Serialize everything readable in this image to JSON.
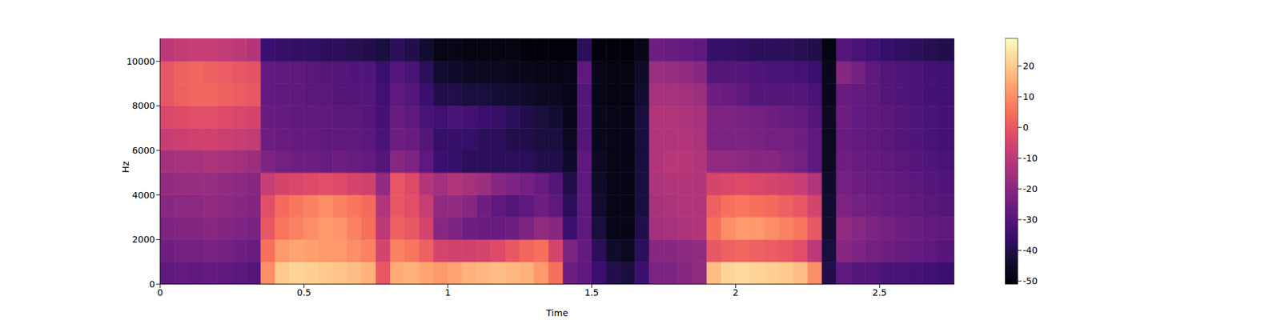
{
  "chart_data": {
    "type": "heatmap",
    "x_label": "Time",
    "y_label": "Hz",
    "xlim": [
      0,
      2.76
    ],
    "ylim": [
      0,
      11025
    ],
    "xticks": [
      0,
      0.5,
      1,
      1.5,
      2,
      2.5
    ],
    "yticks": [
      0,
      2000,
      4000,
      6000,
      8000,
      10000
    ],
    "x_edges": [
      0,
      0.05,
      0.1,
      0.15,
      0.2,
      0.25,
      0.3,
      0.35,
      0.4,
      0.45,
      0.5,
      0.55,
      0.6,
      0.65,
      0.7,
      0.75,
      0.8,
      0.85,
      0.9,
      0.95,
      1,
      1.05,
      1.1,
      1.15,
      1.2,
      1.25,
      1.3,
      1.35,
      1.4,
      1.45,
      1.5,
      1.55,
      1.6,
      1.65,
      1.7,
      1.75,
      1.8,
      1.85,
      1.9,
      1.95,
      2,
      2.05,
      2.1,
      2.15,
      2.2,
      2.25,
      2.3,
      2.35,
      2.4,
      2.45,
      2.5,
      2.55,
      2.6,
      2.65,
      2.7,
      2.76
    ],
    "y_edges": [
      0,
      1000,
      2000,
      3000,
      4000,
      5000,
      6000,
      7000,
      8000,
      9000,
      10000,
      11025
    ],
    "cells": [
      [
        -28,
        -27,
        -28,
        -27,
        -28,
        -29,
        -30,
        10,
        20,
        22,
        21,
        20,
        19,
        18,
        16,
        0,
        15,
        16,
        14,
        12,
        14,
        16,
        17,
        18,
        17,
        16,
        12,
        5,
        -25,
        -28,
        -35,
        -40,
        -42,
        -35,
        -22,
        -22,
        -20,
        -18,
        18,
        22,
        23,
        22,
        21,
        20,
        18,
        10,
        -40,
        -28,
        -30,
        -30,
        -32,
        -32,
        -33,
        -34,
        -35
      ],
      [
        -25,
        -24,
        -24,
        -23,
        -24,
        -25,
        -26,
        5,
        12,
        14,
        13,
        12,
        12,
        10,
        8,
        -5,
        8,
        6,
        2,
        -5,
        -6,
        -6,
        -5,
        -3,
        0,
        3,
        5,
        -5,
        -22,
        -27,
        -38,
        -45,
        -46,
        -38,
        -20,
        -20,
        -19,
        -18,
        0,
        2,
        3,
        2,
        1,
        0,
        -2,
        -10,
        -42,
        -20,
        -22,
        -24,
        -25,
        -26,
        -27,
        -28,
        -30
      ],
      [
        -22,
        -21,
        -21,
        -20,
        -21,
        -22,
        -23,
        0,
        6,
        8,
        10,
        12,
        11,
        8,
        5,
        -10,
        2,
        0,
        -5,
        -20,
        -22,
        -25,
        -26,
        -26,
        -25,
        -22,
        -18,
        -20,
        -35,
        -28,
        -42,
        -48,
        -48,
        -40,
        -15,
        -14,
        -13,
        -12,
        5,
        10,
        12,
        12,
        10,
        8,
        6,
        0,
        -44,
        -18,
        -20,
        -22,
        -24,
        -25,
        -26,
        -27,
        -28
      ],
      [
        -20,
        -19,
        -19,
        -18,
        -19,
        -20,
        -21,
        -2,
        4,
        6,
        8,
        10,
        8,
        6,
        4,
        -12,
        0,
        -2,
        -8,
        -18,
        -18,
        -20,
        -25,
        -28,
        -30,
        -28,
        -25,
        -28,
        -38,
        -28,
        -44,
        -48,
        -48,
        -42,
        -14,
        -13,
        -12,
        -12,
        2,
        5,
        6,
        5,
        4,
        2,
        0,
        -5,
        -44,
        -22,
        -24,
        -25,
        -26,
        -27,
        -28,
        -29,
        -30
      ],
      [
        -18,
        -17,
        -17,
        -17,
        -18,
        -19,
        -20,
        -8,
        -5,
        -4,
        -3,
        -2,
        -3,
        -5,
        -6,
        -18,
        0,
        -3,
        -12,
        -15,
        -12,
        -14,
        -16,
        -20,
        -22,
        -24,
        -26,
        -30,
        -40,
        -28,
        -45,
        -48,
        -48,
        -42,
        -13,
        -12,
        -12,
        -12,
        -5,
        -4,
        -3,
        -4,
        -5,
        -6,
        -8,
        -12,
        -45,
        -24,
        -25,
        -26,
        -27,
        -28,
        -29,
        -30,
        -31
      ],
      [
        -15,
        -14,
        -14,
        -13,
        -14,
        -15,
        -16,
        -22,
        -24,
        -25,
        -25,
        -26,
        -25,
        -26,
        -27,
        -30,
        -20,
        -22,
        -28,
        -35,
        -36,
        -38,
        -38,
        -38,
        -38,
        -38,
        -40,
        -40,
        -45,
        -28,
        -46,
        -48,
        -48,
        -42,
        -12,
        -11,
        -11,
        -12,
        -18,
        -18,
        -19,
        -20,
        -20,
        -22,
        -24,
        -28,
        -46,
        -25,
        -26,
        -27,
        -28,
        -29,
        -30,
        -31,
        -32
      ],
      [
        -8,
        -7,
        -6,
        -6,
        -7,
        -8,
        -9,
        -25,
        -26,
        -27,
        -27,
        -28,
        -28,
        -28,
        -29,
        -32,
        -25,
        -26,
        -30,
        -36,
        -36,
        -36,
        -38,
        -38,
        -40,
        -40,
        -42,
        -42,
        -46,
        -30,
        -47,
        -48,
        -48,
        -42,
        -12,
        -12,
        -12,
        -13,
        -22,
        -22,
        -22,
        -23,
        -24,
        -24,
        -25,
        -28,
        -46,
        -26,
        -27,
        -28,
        -29,
        -30,
        -31,
        -32,
        -33
      ],
      [
        -4,
        -3,
        -2,
        -2,
        -3,
        -4,
        -5,
        -26,
        -27,
        -28,
        -28,
        -28,
        -29,
        -29,
        -30,
        -33,
        -26,
        -28,
        -32,
        -34,
        -32,
        -33,
        -35,
        -36,
        -38,
        -40,
        -42,
        -44,
        -47,
        -30,
        -47,
        -48,
        -48,
        -42,
        -12,
        -12,
        -13,
        -14,
        -22,
        -22,
        -23,
        -24,
        -25,
        -26,
        -27,
        -30,
        -46,
        -25,
        -27,
        -28,
        -29,
        -30,
        -31,
        -32,
        -33
      ],
      [
        0,
        2,
        3,
        3,
        2,
        1,
        0,
        -27,
        -28,
        -28,
        -29,
        -29,
        -30,
        -30,
        -30,
        -34,
        -28,
        -30,
        -35,
        -40,
        -40,
        -42,
        -42,
        -43,
        -44,
        -45,
        -46,
        -46,
        -48,
        -30,
        -48,
        -49,
        -49,
        -44,
        -14,
        -14,
        -15,
        -16,
        -25,
        -26,
        -28,
        -30,
        -30,
        -30,
        -30,
        -32,
        -47,
        -26,
        -27,
        -28,
        -30,
        -31,
        -32,
        -33,
        -34
      ],
      [
        0,
        2,
        3,
        2,
        1,
        0,
        -1,
        -27,
        -28,
        -28,
        -29,
        -30,
        -30,
        -31,
        -31,
        -35,
        -30,
        -32,
        -38,
        -44,
        -45,
        -46,
        -46,
        -46,
        -47,
        -47,
        -48,
        -48,
        -48,
        -28,
        -48,
        -49,
        -49,
        -45,
        -16,
        -17,
        -18,
        -20,
        -30,
        -30,
        -30,
        -31,
        -32,
        -32,
        -33,
        -35,
        -47,
        -20,
        -24,
        -28,
        -30,
        -31,
        -32,
        -33,
        -34
      ],
      [
        -10,
        -9,
        -8,
        -8,
        -9,
        -10,
        -12,
        -35,
        -36,
        -37,
        -37,
        -38,
        -38,
        -39,
        -40,
        -42,
        -38,
        -40,
        -44,
        -48,
        -48,
        -49,
        -49,
        -49,
        -49,
        -50,
        -50,
        -50,
        -50,
        -38,
        -50,
        -50,
        -50,
        -48,
        -25,
        -26,
        -27,
        -28,
        -36,
        -36,
        -37,
        -38,
        -38,
        -38,
        -39,
        -40,
        -49,
        -30,
        -32,
        -34,
        -36,
        -37,
        -38,
        -39,
        -40
      ]
    ],
    "colorbar": {
      "range": [
        -51,
        29
      ],
      "ticks": [
        -50,
        -40,
        -30,
        -20,
        -10,
        0,
        10,
        20
      ]
    }
  }
}
